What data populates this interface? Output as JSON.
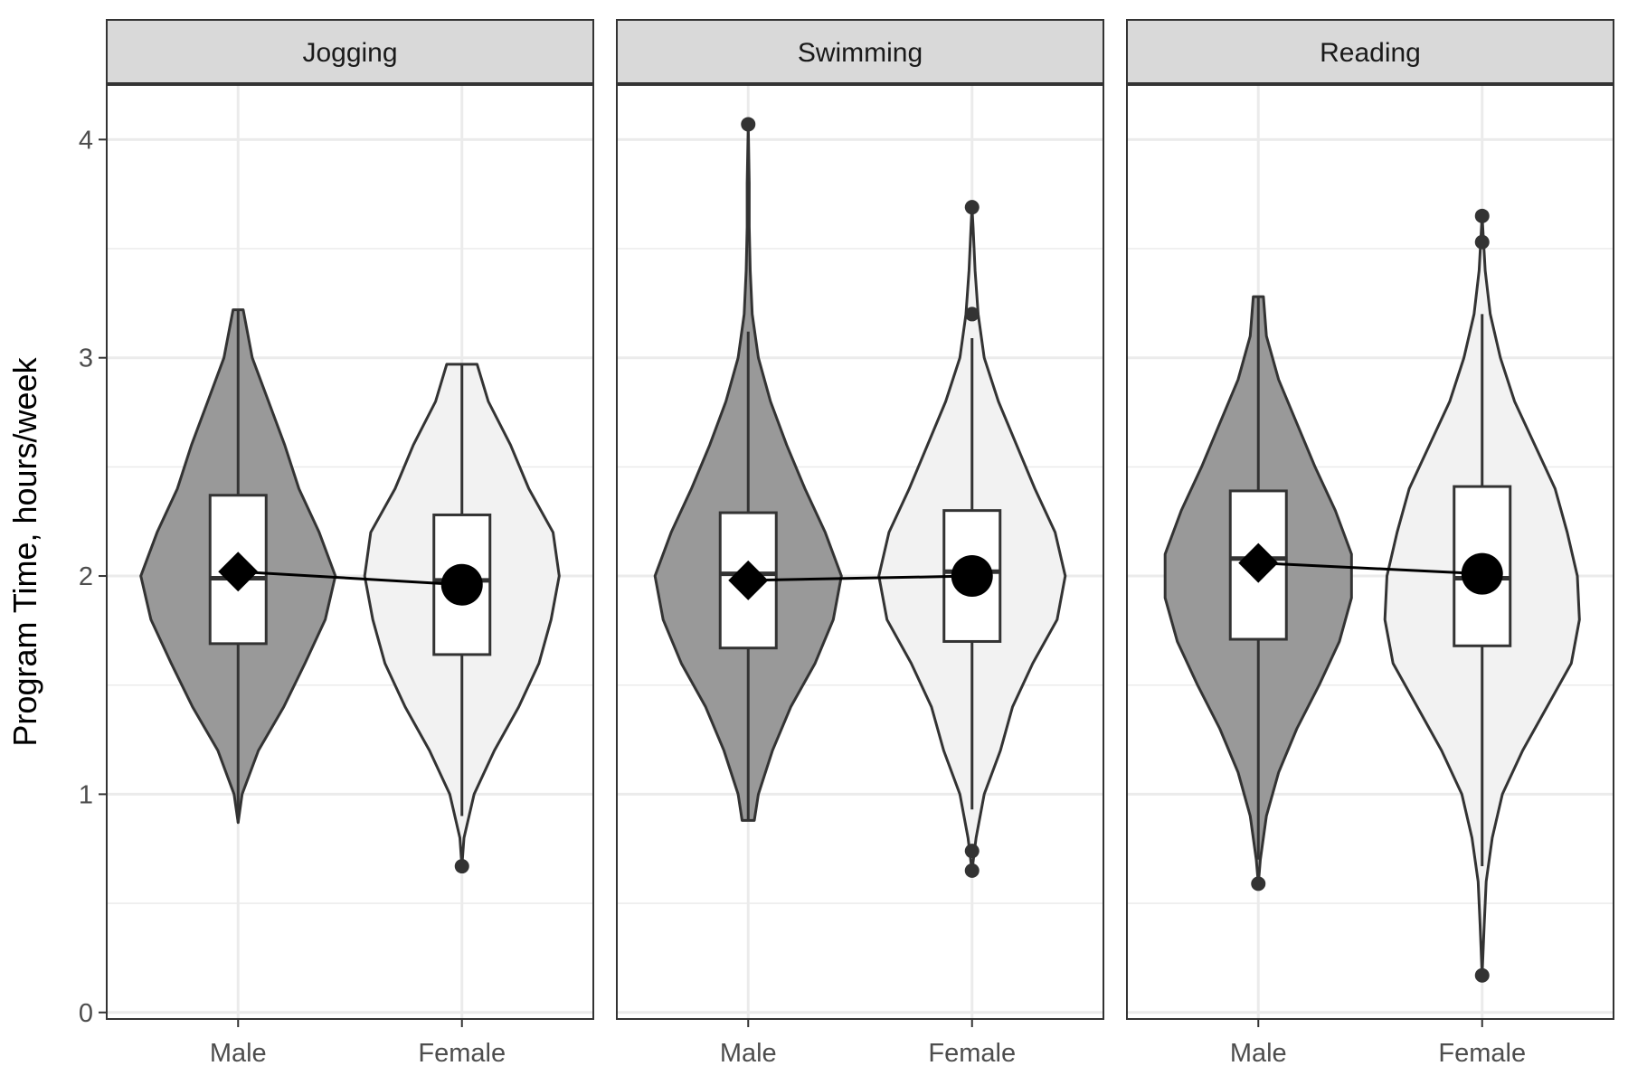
{
  "chart_data": {
    "type": "violin",
    "facets": [
      "Jogging",
      "Swimming",
      "Reading"
    ],
    "categories": [
      "Male",
      "Female"
    ],
    "ylabel": "Program Time, hours/week",
    "xlabel": "",
    "ylim": [
      -0.03,
      4.25
    ],
    "yticks": [
      0,
      1,
      2,
      3,
      4
    ],
    "grid": true,
    "colors": {
      "Male": "#999999",
      "Female": "#f2f2f2",
      "outline": "#333333",
      "mean": "#000000"
    },
    "mean_markers": {
      "Male": "diamond",
      "Female": "circle"
    },
    "panels": [
      {
        "facet": "Jogging",
        "groups": [
          {
            "category": "Male",
            "min": 0.87,
            "max": 3.22,
            "q1": 1.69,
            "median": 1.99,
            "q3": 2.37,
            "whisker_low": 0.87,
            "whisker_high": 3.22,
            "mean": 2.02,
            "outliers": [],
            "violin": [
              [
                0.87,
                0.0
              ],
              [
                1.0,
                0.04
              ],
              [
                1.2,
                0.2
              ],
              [
                1.4,
                0.45
              ],
              [
                1.6,
                0.66
              ],
              [
                1.8,
                0.86
              ],
              [
                2.0,
                0.96
              ],
              [
                2.2,
                0.8
              ],
              [
                2.4,
                0.6
              ],
              [
                2.6,
                0.46
              ],
              [
                2.8,
                0.3
              ],
              [
                3.0,
                0.14
              ],
              [
                3.22,
                0.05
              ]
            ]
          },
          {
            "category": "Female",
            "min": 0.67,
            "max": 2.97,
            "q1": 1.64,
            "median": 1.98,
            "q3": 2.28,
            "whisker_low": 0.9,
            "whisker_high": 2.97,
            "mean": 1.96,
            "outliers": [
              0.67
            ],
            "violin": [
              [
                0.67,
                0.0
              ],
              [
                0.8,
                0.02
              ],
              [
                1.0,
                0.12
              ],
              [
                1.2,
                0.32
              ],
              [
                1.4,
                0.56
              ],
              [
                1.6,
                0.76
              ],
              [
                1.8,
                0.88
              ],
              [
                2.0,
                0.96
              ],
              [
                2.2,
                0.9
              ],
              [
                2.4,
                0.66
              ],
              [
                2.6,
                0.48
              ],
              [
                2.8,
                0.26
              ],
              [
                2.97,
                0.15
              ]
            ]
          }
        ]
      },
      {
        "facet": "Swimming",
        "groups": [
          {
            "category": "Male",
            "min": 0.88,
            "max": 4.07,
            "q1": 1.67,
            "median": 2.01,
            "q3": 2.29,
            "whisker_low": 0.88,
            "whisker_high": 3.12,
            "mean": 1.98,
            "outliers": [
              4.07
            ],
            "violin": [
              [
                0.88,
                0.06
              ],
              [
                1.0,
                0.1
              ],
              [
                1.2,
                0.24
              ],
              [
                1.4,
                0.42
              ],
              [
                1.6,
                0.66
              ],
              [
                1.8,
                0.84
              ],
              [
                2.0,
                0.92
              ],
              [
                2.2,
                0.76
              ],
              [
                2.4,
                0.56
              ],
              [
                2.6,
                0.38
              ],
              [
                2.8,
                0.22
              ],
              [
                3.0,
                0.1
              ],
              [
                3.2,
                0.04
              ],
              [
                3.4,
                0.02
              ],
              [
                3.6,
                0.01
              ],
              [
                3.8,
                0.01
              ],
              [
                4.07,
                0.0
              ]
            ]
          },
          {
            "category": "Female",
            "min": 0.65,
            "max": 3.69,
            "q1": 1.7,
            "median": 2.02,
            "q3": 2.3,
            "whisker_low": 0.93,
            "whisker_high": 3.09,
            "mean": 2.0,
            "outliers": [
              3.69,
              3.2,
              0.74,
              0.65
            ],
            "violin": [
              [
                0.65,
                0.0
              ],
              [
                0.8,
                0.04
              ],
              [
                1.0,
                0.12
              ],
              [
                1.2,
                0.28
              ],
              [
                1.4,
                0.4
              ],
              [
                1.6,
                0.6
              ],
              [
                1.8,
                0.84
              ],
              [
                2.0,
                0.92
              ],
              [
                2.2,
                0.82
              ],
              [
                2.4,
                0.62
              ],
              [
                2.6,
                0.44
              ],
              [
                2.8,
                0.26
              ],
              [
                3.0,
                0.12
              ],
              [
                3.2,
                0.06
              ],
              [
                3.4,
                0.03
              ],
              [
                3.6,
                0.01
              ],
              [
                3.69,
                0.0
              ]
            ]
          }
        ]
      },
      {
        "facet": "Reading",
        "groups": [
          {
            "category": "Male",
            "min": 0.59,
            "max": 3.28,
            "q1": 1.71,
            "median": 2.08,
            "q3": 2.39,
            "whisker_low": 0.7,
            "whisker_high": 3.28,
            "mean": 2.06,
            "outliers": [
              0.59
            ],
            "violin": [
              [
                0.59,
                0.0
              ],
              [
                0.7,
                0.02
              ],
              [
                0.9,
                0.08
              ],
              [
                1.1,
                0.2
              ],
              [
                1.3,
                0.38
              ],
              [
                1.5,
                0.6
              ],
              [
                1.7,
                0.8
              ],
              [
                1.9,
                0.92
              ],
              [
                2.1,
                0.92
              ],
              [
                2.3,
                0.76
              ],
              [
                2.5,
                0.56
              ],
              [
                2.7,
                0.38
              ],
              [
                2.9,
                0.2
              ],
              [
                3.1,
                0.08
              ],
              [
                3.28,
                0.05
              ]
            ]
          },
          {
            "category": "Female",
            "min": 0.17,
            "max": 3.65,
            "q1": 1.68,
            "median": 1.99,
            "q3": 2.41,
            "whisker_low": 0.67,
            "whisker_high": 3.2,
            "mean": 2.01,
            "outliers": [
              3.65,
              3.53,
              0.17
            ],
            "violin": [
              [
                0.17,
                0.0
              ],
              [
                0.4,
                0.02
              ],
              [
                0.6,
                0.04
              ],
              [
                0.8,
                0.1
              ],
              [
                1.0,
                0.2
              ],
              [
                1.2,
                0.4
              ],
              [
                1.4,
                0.64
              ],
              [
                1.6,
                0.88
              ],
              [
                1.8,
                0.96
              ],
              [
                2.0,
                0.94
              ],
              [
                2.2,
                0.84
              ],
              [
                2.4,
                0.72
              ],
              [
                2.6,
                0.52
              ],
              [
                2.8,
                0.32
              ],
              [
                3.0,
                0.18
              ],
              [
                3.2,
                0.08
              ],
              [
                3.4,
                0.03
              ],
              [
                3.65,
                0.0
              ]
            ]
          }
        ]
      }
    ]
  }
}
